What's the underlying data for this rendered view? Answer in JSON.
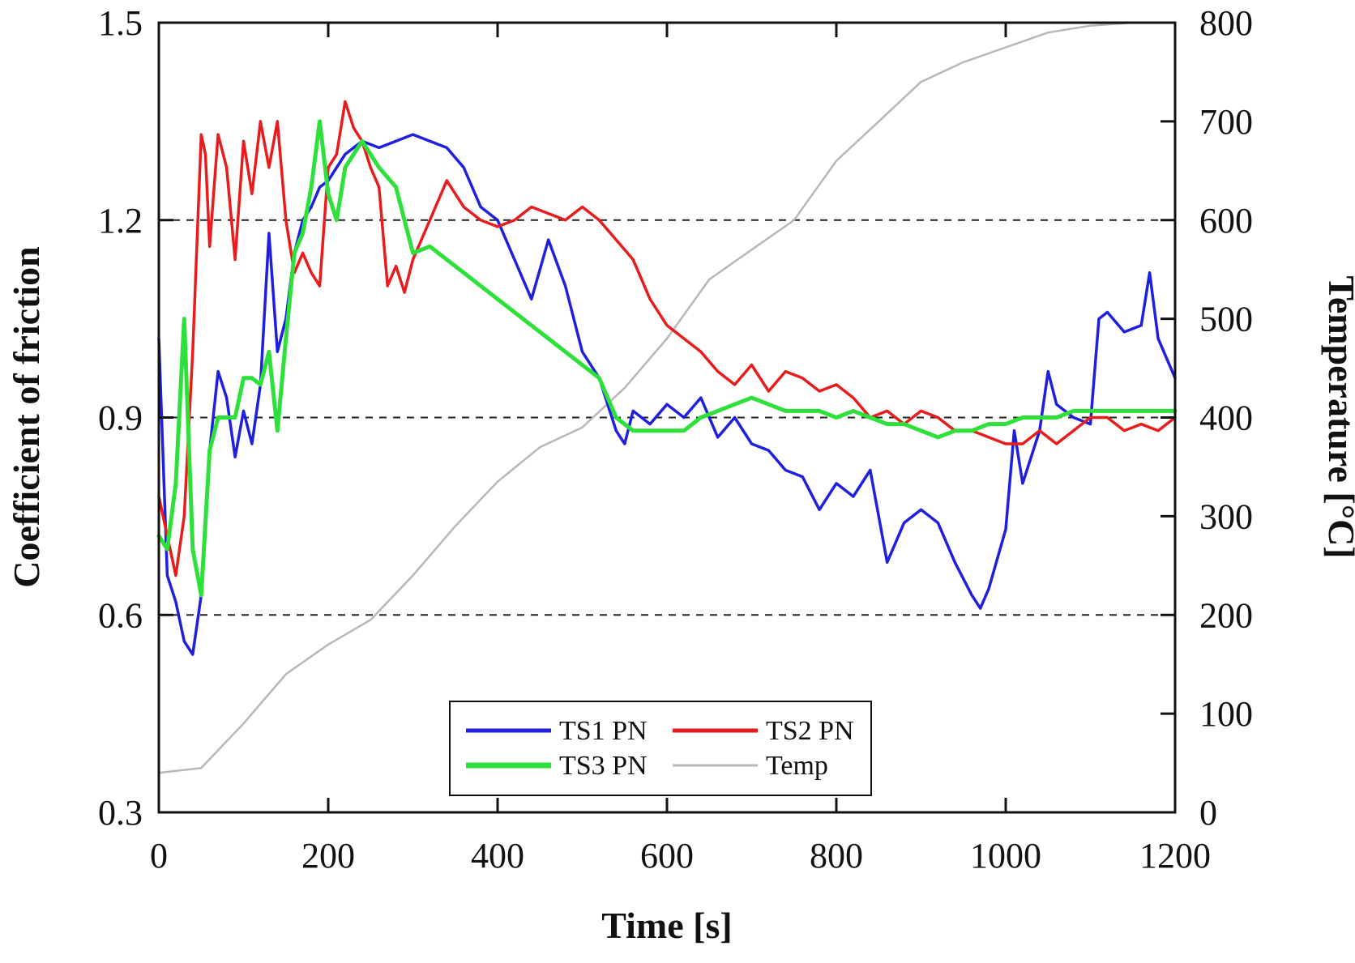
{
  "chart_data": {
    "type": "line",
    "title": "",
    "xlabel": "Time [s]",
    "ylabel": "Coefficient of friction",
    "y2label": "Temperature [°C]",
    "xlim": [
      0,
      1200
    ],
    "ylim": [
      0.3,
      1.5
    ],
    "y2lim": [
      0,
      800
    ],
    "x_ticks": [
      "0",
      "200",
      "400",
      "600",
      "800",
      "1000",
      "1200"
    ],
    "y_ticks": [
      "0.3",
      "0.6",
      "0.9",
      "1.2",
      "1.5"
    ],
    "y2_ticks": [
      "0",
      "100",
      "200",
      "300",
      "400",
      "500",
      "600",
      "700",
      "800"
    ],
    "gridlines_y": [
      0.6,
      0.9,
      1.2
    ],
    "grid_style": "dashed horizontal at 0.6, 0.9, 1.2",
    "legend_position": "bottom-center",
    "series": [
      {
        "name": "TS1 PN",
        "color": "#1f1fe0",
        "axis": "left",
        "x": [
          0,
          10,
          20,
          30,
          40,
          50,
          60,
          70,
          80,
          90,
          100,
          110,
          120,
          130,
          140,
          150,
          160,
          170,
          180,
          190,
          200,
          220,
          240,
          260,
          280,
          300,
          320,
          340,
          360,
          380,
          400,
          420,
          440,
          460,
          480,
          500,
          520,
          540,
          550,
          560,
          580,
          600,
          620,
          640,
          660,
          680,
          700,
          720,
          740,
          760,
          780,
          800,
          820,
          840,
          860,
          880,
          900,
          920,
          940,
          960,
          970,
          980,
          1000,
          1010,
          1020,
          1040,
          1050,
          1060,
          1080,
          1100,
          1110,
          1120,
          1140,
          1160,
          1170,
          1180,
          1200
        ],
        "y": [
          1.02,
          0.66,
          0.62,
          0.56,
          0.54,
          0.63,
          0.85,
          0.97,
          0.93,
          0.84,
          0.91,
          0.86,
          0.95,
          1.18,
          1.0,
          1.05,
          1.15,
          1.2,
          1.22,
          1.25,
          1.26,
          1.3,
          1.32,
          1.31,
          1.32,
          1.33,
          1.32,
          1.31,
          1.28,
          1.22,
          1.2,
          1.14,
          1.08,
          1.17,
          1.1,
          1.0,
          0.96,
          0.88,
          0.86,
          0.91,
          0.89,
          0.92,
          0.9,
          0.93,
          0.87,
          0.9,
          0.86,
          0.85,
          0.82,
          0.81,
          0.76,
          0.8,
          0.78,
          0.82,
          0.68,
          0.74,
          0.76,
          0.74,
          0.68,
          0.63,
          0.61,
          0.64,
          0.73,
          0.88,
          0.8,
          0.88,
          0.97,
          0.92,
          0.9,
          0.89,
          1.05,
          1.06,
          1.03,
          1.04,
          1.12,
          1.02,
          0.96
        ]
      },
      {
        "name": "TS2 PN",
        "color": "#e81c1c",
        "axis": "left",
        "x": [
          0,
          10,
          20,
          30,
          40,
          50,
          55,
          60,
          70,
          80,
          90,
          100,
          110,
          120,
          130,
          140,
          150,
          160,
          170,
          180,
          190,
          200,
          210,
          220,
          230,
          240,
          250,
          260,
          270,
          280,
          290,
          300,
          320,
          340,
          360,
          380,
          400,
          420,
          440,
          460,
          480,
          500,
          520,
          540,
          560,
          580,
          600,
          620,
          640,
          660,
          680,
          700,
          720,
          740,
          760,
          780,
          800,
          820,
          840,
          860,
          880,
          900,
          920,
          940,
          960,
          980,
          1000,
          1020,
          1040,
          1060,
          1080,
          1100,
          1120,
          1140,
          1160,
          1180,
          1200
        ],
        "y": [
          0.78,
          0.72,
          0.66,
          0.75,
          1.0,
          1.33,
          1.3,
          1.16,
          1.33,
          1.28,
          1.14,
          1.32,
          1.24,
          1.35,
          1.28,
          1.35,
          1.2,
          1.12,
          1.15,
          1.12,
          1.1,
          1.28,
          1.3,
          1.38,
          1.34,
          1.32,
          1.28,
          1.25,
          1.1,
          1.13,
          1.09,
          1.14,
          1.2,
          1.26,
          1.22,
          1.2,
          1.19,
          1.2,
          1.22,
          1.21,
          1.2,
          1.22,
          1.2,
          1.17,
          1.14,
          1.08,
          1.04,
          1.02,
          1.0,
          0.97,
          0.95,
          0.98,
          0.94,
          0.97,
          0.96,
          0.94,
          0.95,
          0.93,
          0.9,
          0.91,
          0.89,
          0.91,
          0.9,
          0.88,
          0.88,
          0.87,
          0.86,
          0.86,
          0.88,
          0.86,
          0.88,
          0.9,
          0.9,
          0.88,
          0.89,
          0.88,
          0.9
        ]
      },
      {
        "name": "TS3 PN",
        "color": "#2ee03a",
        "axis": "left",
        "x": [
          0,
          10,
          20,
          30,
          40,
          50,
          60,
          70,
          80,
          90,
          100,
          110,
          120,
          130,
          140,
          150,
          160,
          170,
          180,
          190,
          200,
          210,
          220,
          240,
          260,
          280,
          300,
          320,
          340,
          360,
          380,
          400,
          420,
          440,
          460,
          480,
          500,
          520,
          540,
          560,
          580,
          600,
          620,
          640,
          660,
          680,
          700,
          720,
          740,
          760,
          780,
          800,
          820,
          840,
          860,
          880,
          900,
          920,
          940,
          960,
          980,
          1000,
          1020,
          1040,
          1060,
          1080,
          1100,
          1120,
          1140,
          1160,
          1180,
          1200
        ],
        "y": [
          0.72,
          0.7,
          0.8,
          1.05,
          0.7,
          0.63,
          0.85,
          0.9,
          0.9,
          0.9,
          0.96,
          0.96,
          0.95,
          1.0,
          0.88,
          1.02,
          1.15,
          1.18,
          1.25,
          1.35,
          1.24,
          1.2,
          1.28,
          1.32,
          1.28,
          1.25,
          1.15,
          1.16,
          1.14,
          1.12,
          1.1,
          1.08,
          1.06,
          1.04,
          1.02,
          1.0,
          0.98,
          0.96,
          0.9,
          0.88,
          0.88,
          0.88,
          0.88,
          0.9,
          0.91,
          0.92,
          0.93,
          0.92,
          0.91,
          0.91,
          0.91,
          0.9,
          0.91,
          0.9,
          0.89,
          0.89,
          0.88,
          0.87,
          0.88,
          0.88,
          0.89,
          0.89,
          0.9,
          0.9,
          0.9,
          0.91,
          0.91,
          0.91,
          0.91,
          0.91,
          0.91,
          0.91
        ]
      },
      {
        "name": "Temp",
        "color": "#b8b8b8",
        "axis": "right",
        "x": [
          0,
          50,
          100,
          150,
          200,
          250,
          300,
          350,
          400,
          450,
          500,
          550,
          600,
          650,
          700,
          750,
          800,
          850,
          900,
          950,
          1000,
          1050,
          1100,
          1150,
          1200
        ],
        "y": [
          40,
          45,
          90,
          140,
          170,
          195,
          240,
          290,
          335,
          370,
          390,
          430,
          480,
          540,
          570,
          600,
          660,
          700,
          740,
          760,
          775,
          790,
          797,
          800,
          800
        ]
      }
    ]
  }
}
